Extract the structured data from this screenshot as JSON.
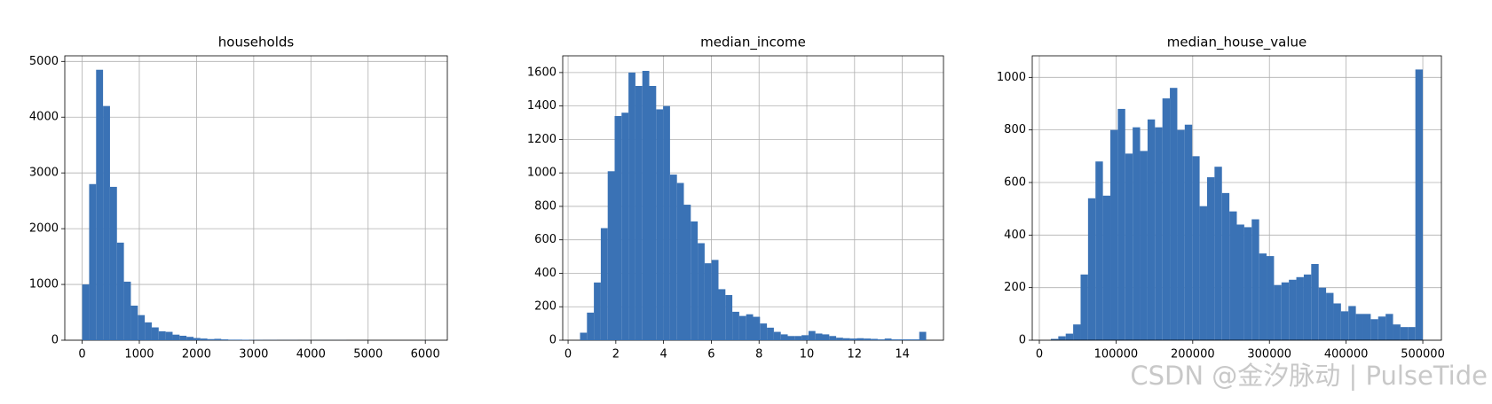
{
  "chart_data": [
    {
      "type": "histogram",
      "title": "households",
      "color": "#3a72b5",
      "grid": true,
      "bins": [
        1,
        122.6,
        244.2,
        365.8,
        487.4,
        609,
        730.6,
        852.2,
        973.8,
        1095.4,
        1217,
        1338.6,
        1460.2,
        1581.8,
        1703.4,
        1825,
        1946.6,
        2068.2,
        2189.8,
        2311.4,
        2433,
        2554.6,
        2676.2,
        2797.8,
        2919.4,
        3041,
        3162.6,
        3284.2,
        3405.8,
        3527.4,
        3649,
        3770.6,
        3892.2,
        4013.8,
        4135.4,
        4257,
        4378.6,
        4500.2,
        4621.8,
        4743.4,
        4865,
        4986.6,
        5108.2,
        5229.8,
        5351.4,
        5473,
        5594.6,
        5716.2,
        5837.8,
        5959.4,
        6081
      ],
      "values": [
        1000,
        2800,
        4850,
        4200,
        2750,
        1750,
        1050,
        620,
        450,
        320,
        230,
        160,
        150,
        100,
        80,
        60,
        40,
        30,
        20,
        25,
        15,
        10,
        10,
        8,
        5,
        4,
        3,
        3,
        2,
        2,
        2,
        1,
        1,
        1,
        1,
        1,
        1,
        1,
        0,
        0,
        0,
        0,
        0,
        0,
        0,
        0,
        0,
        0,
        0,
        1
      ],
      "xlim": [
        -303,
        6385
      ],
      "ylim": [
        0,
        5100
      ],
      "xticks": [
        0,
        1000,
        2000,
        3000,
        4000,
        5000,
        6000
      ],
      "yticks": [
        0,
        1000,
        2000,
        3000,
        4000,
        5000
      ]
    },
    {
      "type": "histogram",
      "title": "median_income",
      "color": "#3a72b5",
      "grid": true,
      "bins": [
        0.5,
        0.79,
        1.08,
        1.37,
        1.66,
        1.95,
        2.24,
        2.53,
        2.82,
        3.11,
        3.4,
        3.69,
        3.98,
        4.27,
        4.56,
        4.85,
        5.14,
        5.43,
        5.72,
        6.01,
        6.3,
        6.59,
        6.88,
        7.17,
        7.46,
        7.75,
        8.04,
        8.33,
        8.62,
        8.91,
        9.2,
        9.49,
        9.78,
        10.07,
        10.36,
        10.65,
        10.94,
        11.23,
        11.52,
        11.81,
        12.1,
        12.39,
        12.68,
        12.97,
        13.26,
        13.55,
        13.84,
        14.13,
        14.42,
        14.71,
        15.0
      ],
      "values": [
        45,
        165,
        345,
        670,
        1010,
        1340,
        1360,
        1600,
        1520,
        1610,
        1520,
        1380,
        1400,
        990,
        940,
        810,
        710,
        580,
        460,
        480,
        305,
        270,
        170,
        145,
        155,
        140,
        100,
        75,
        50,
        35,
        25,
        25,
        30,
        55,
        40,
        35,
        25,
        15,
        12,
        10,
        12,
        10,
        8,
        5,
        10,
        5,
        5,
        5,
        5,
        50
      ],
      "xlim": [
        -0.225,
        15.725
      ],
      "ylim": [
        0,
        1700
      ],
      "xticks": [
        0,
        2,
        4,
        6,
        8,
        10,
        12,
        14
      ],
      "yticks": [
        0,
        200,
        400,
        600,
        800,
        1000,
        1200,
        1400,
        1600
      ]
    },
    {
      "type": "histogram",
      "title": "median_house_value",
      "color": "#3a72b5",
      "grid": true,
      "bins": [
        15000,
        24700,
        34400,
        44100,
        53800,
        63500,
        73200,
        82900,
        92600,
        102300,
        112000,
        121700,
        131400,
        141100,
        150800,
        160500,
        170200,
        179900,
        189600,
        199300,
        209000,
        218700,
        228400,
        238100,
        247800,
        257500,
        267200,
        276900,
        286600,
        296300,
        306000,
        315700,
        325400,
        335100,
        344800,
        354500,
        364200,
        373900,
        383600,
        393300,
        403000,
        412700,
        422400,
        432100,
        441800,
        451500,
        461200,
        470900,
        480600,
        490300,
        500000
      ],
      "values": [
        5,
        15,
        25,
        60,
        250,
        540,
        680,
        550,
        800,
        880,
        710,
        810,
        720,
        840,
        810,
        920,
        960,
        800,
        820,
        700,
        510,
        620,
        660,
        560,
        490,
        440,
        430,
        460,
        330,
        320,
        210,
        220,
        230,
        240,
        250,
        290,
        200,
        180,
        140,
        110,
        130,
        100,
        100,
        80,
        90,
        100,
        60,
        50,
        50,
        1030
      ],
      "xlim": [
        -9250,
        524250
      ],
      "ylim": [
        0,
        1082
      ],
      "xticks": [
        0,
        100000,
        200000,
        300000,
        400000,
        500000
      ],
      "yticks": [
        0,
        200,
        400,
        600,
        800,
        1000
      ]
    }
  ],
  "watermark": "CSDN @金汐脉动 | PulseTide"
}
